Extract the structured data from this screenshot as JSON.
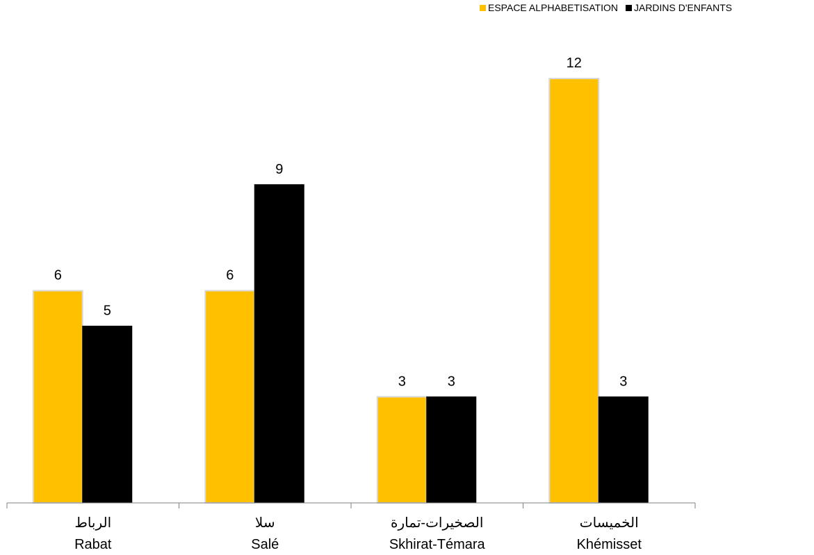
{
  "chart_data": {
    "type": "bar",
    "categories": [
      {
        "ar": "الرباط",
        "fr": "Rabat"
      },
      {
        "ar": "سلا",
        "fr": "Salé"
      },
      {
        "ar": "الصخيرات-تمارة",
        "fr": "Skhirat-Témara"
      },
      {
        "ar": "الخميسات",
        "fr": "Khémisset"
      }
    ],
    "series": [
      {
        "name": "ESPACE ALPHABETISATION",
        "color": "#FFC000",
        "values": [
          6,
          6,
          3,
          12
        ]
      },
      {
        "name": "JARDINS D'ENFANTS",
        "color": "#000000",
        "values": [
          5,
          9,
          3,
          3
        ]
      }
    ],
    "ylim": [
      0,
      12
    ],
    "grid": false,
    "legend_position": "top-right",
    "data_labels": true
  }
}
